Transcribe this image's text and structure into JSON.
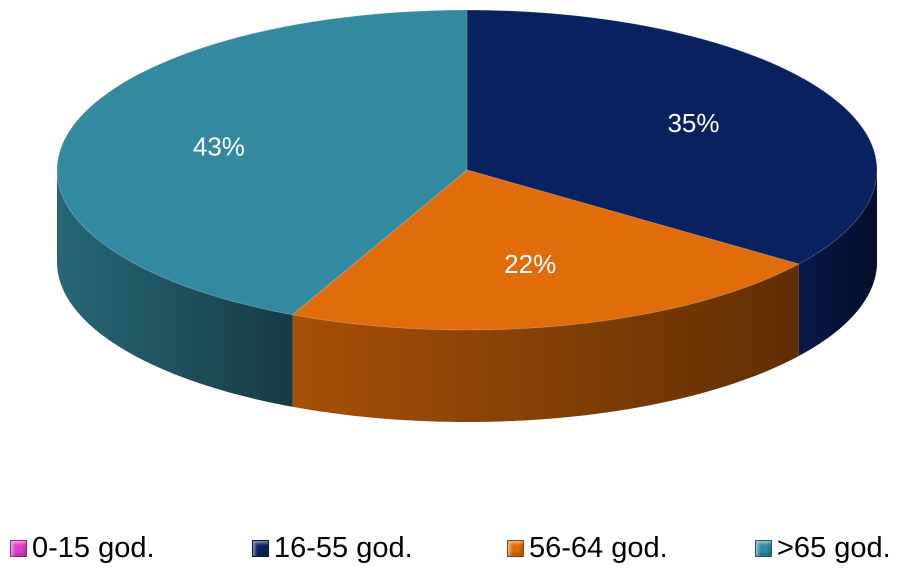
{
  "chart_data": {
    "type": "pie",
    "categories": [
      "0-15 god.",
      "16-55 god.",
      "56-64 god.",
      ">65 god."
    ],
    "values": [
      0,
      35,
      22,
      43
    ],
    "data_labels": [
      "",
      "35%",
      "22%",
      "43%"
    ],
    "colors": [
      "#e040c8",
      "#0a2160",
      "#e06c0a",
      "#338aa0"
    ],
    "legend": "bottom"
  }
}
